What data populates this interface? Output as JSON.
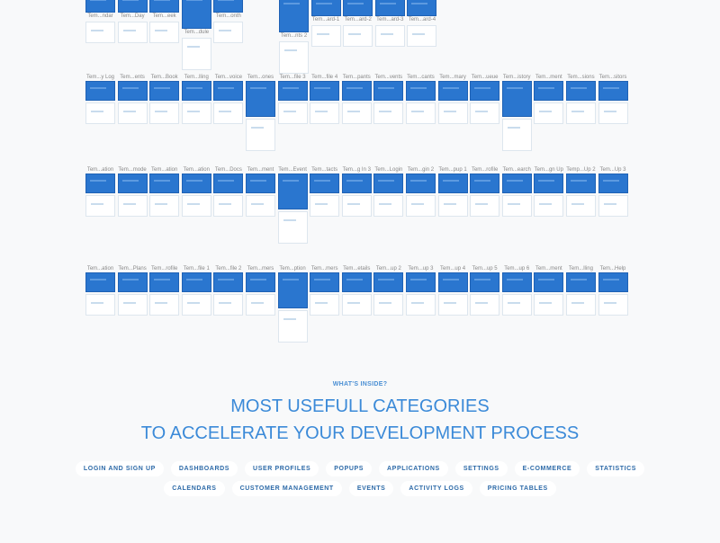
{
  "top_left": [
    "Tem...ndar",
    "Tem...Day",
    "Tem...eek",
    "Tem...dule",
    "Tem...onth"
  ],
  "top_right": [
    "Tem...nts 2",
    "Tem...ard-1",
    "Tem...ard-2",
    "Tem...ard-3",
    "Tem...ard-4"
  ],
  "rows": [
    [
      "Tem...y Log",
      "Tem...ents",
      "Tem...Book",
      "Tem...lling",
      "Tem...voice",
      "Tem...ones",
      "Tem...file 3",
      "Tem...file 4",
      "Tem...pants",
      "Tem...vents",
      "Tem...cants",
      "Tem...mary",
      "Tem...ueue",
      "Tem...istory",
      "Tem...ment",
      "Tem...sions",
      "Tem...sitors"
    ],
    [
      "Tem...ation",
      "Tem...mode",
      "Tem...ation",
      "Tem...ation",
      "Tem...Docs",
      "Tem...ment",
      "Tem...Event",
      "Tem...tacts",
      "Tem...g In 3",
      "Tem...Login",
      "Tem...gin 2",
      "Tem...pup 1",
      "Tem...rofile",
      "Tem...earch",
      "Tem...gn Up",
      "Temp...Up 2",
      "Tem...Up 3"
    ],
    [
      "Tem...ation",
      "Tem...Plans",
      "Tem...rofile",
      "Tem...file 1",
      "Tem...file 2",
      "Tem...mers",
      "Tem...ption",
      "Tem...mers",
      "Tem...etails",
      "Tem...up 2",
      "Tem...up 3",
      "Tem...up 4",
      "Tem...up 5",
      "Tem...up 6",
      "Tem...ment",
      "Tem...lling",
      "Tem...Help"
    ]
  ],
  "hero": {
    "eyebrow": "WHAT'S INSIDE?",
    "title1": "MOST USEFULL CATEGORIES",
    "title2": "TO ACCELERATE YOUR DEVELOPMENT PROCESS"
  },
  "categories_row1": [
    "LOGIN AND SIGN UP",
    "DASHBOARDS",
    "USER PROFILES",
    "POPUPS",
    "APPLICATIONS",
    "SETTINGS",
    "E-COMMERCE",
    "STATISTICS"
  ],
  "categories_row2": [
    "CALENDARS",
    "CUSTOMER MANAGEMENT",
    "EVENTS",
    "ACTIVITY LOGS",
    "PRICING TABLES"
  ],
  "colors": {
    "accent": "#2a76cf",
    "heading": "#3b8ad8"
  }
}
